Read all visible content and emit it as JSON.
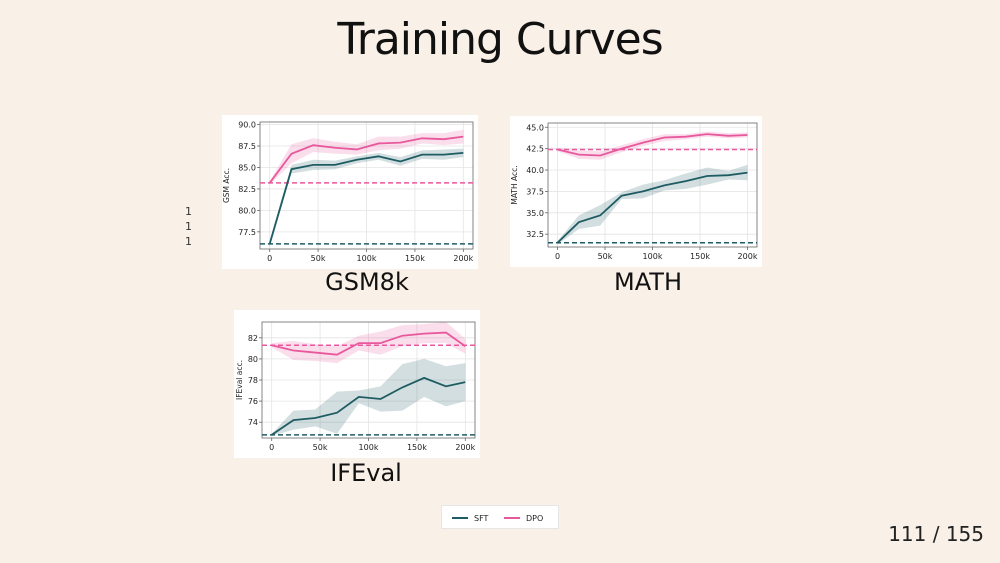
{
  "title": "Training Curves",
  "page_number": "111 / 155",
  "side_numbers": [
    "1",
    "1",
    "1"
  ],
  "legend": [
    {
      "name": "SFT",
      "color": "#1e5c63"
    },
    {
      "name": "DPO",
      "color": "#e8589c"
    }
  ],
  "colors": {
    "sft": "#1e5c63",
    "dpo": "#e8589c",
    "background": "#f9f0e7"
  },
  "chart_data": [
    {
      "id": "gsm8k",
      "type": "line",
      "caption": "GSM8k",
      "ylabel": "GSM Acc.",
      "xlim": [
        -10000,
        210000
      ],
      "ylim": [
        75.5,
        90.3
      ],
      "xticks": [
        0,
        50000,
        100000,
        150000,
        200000
      ],
      "xtick_labels": [
        "0",
        "50k",
        "100k",
        "150k",
        "200k"
      ],
      "yticks": [
        77.5,
        80.0,
        82.5,
        85.0,
        87.5,
        90.0
      ],
      "ytick_labels": [
        "77.5",
        "80.0",
        "82.5",
        "85.0",
        "87.5",
        "90.0"
      ],
      "grid": true,
      "x": [
        0,
        22500,
        45000,
        67500,
        90000,
        112500,
        135000,
        157500,
        180000,
        200000
      ],
      "series": [
        {
          "name": "SFT",
          "color": "#1e5c63",
          "values": [
            76.1,
            84.8,
            85.3,
            85.3,
            85.9,
            86.3,
            85.7,
            86.5,
            86.5,
            86.7
          ],
          "band": [
            0.4,
            0.5,
            0.6,
            0.5,
            0.4,
            0.4,
            0.5,
            0.5,
            0.6,
            0.5
          ],
          "baseline": 76.1
        },
        {
          "name": "DPO",
          "color": "#e8589c",
          "values": [
            83.2,
            86.6,
            87.6,
            87.3,
            87.1,
            87.8,
            87.9,
            88.4,
            88.3,
            88.6
          ],
          "band": [
            0.2,
            1.1,
            0.8,
            0.7,
            0.6,
            0.8,
            0.7,
            0.6,
            0.7,
            0.8
          ],
          "baseline": 83.2
        }
      ]
    },
    {
      "id": "math",
      "type": "line",
      "caption": "MATH",
      "ylabel": "MATH Acc.",
      "xlim": [
        -10000,
        210000
      ],
      "ylim": [
        31.0,
        45.5
      ],
      "xticks": [
        0,
        50000,
        100000,
        150000,
        200000
      ],
      "xtick_labels": [
        "0",
        "50k",
        "100k",
        "150k",
        "200k"
      ],
      "yticks": [
        32.5,
        35.0,
        37.5,
        40.0,
        42.5,
        45.0
      ],
      "ytick_labels": [
        "32.5",
        "35.0",
        "37.5",
        "40.0",
        "42.5",
        "45.0"
      ],
      "grid": true,
      "x": [
        0,
        22500,
        45000,
        67500,
        90000,
        112500,
        135000,
        157500,
        180000,
        200000
      ],
      "series": [
        {
          "name": "SFT",
          "color": "#1e5c63",
          "values": [
            31.5,
            33.9,
            34.7,
            37.0,
            37.5,
            38.2,
            38.7,
            39.3,
            39.4,
            39.7
          ],
          "band": [
            0.2,
            0.8,
            1.2,
            0.4,
            0.8,
            0.6,
            0.9,
            1.0,
            0.5,
            0.9
          ],
          "baseline": 31.5
        },
        {
          "name": "DPO",
          "color": "#e8589c",
          "values": [
            42.4,
            41.8,
            41.7,
            42.5,
            43.2,
            43.8,
            43.9,
            44.2,
            44.0,
            44.1
          ],
          "band": [
            0.2,
            0.5,
            0.5,
            0.4,
            0.4,
            0.4,
            0.3,
            0.3,
            0.3,
            0.3
          ],
          "baseline": 42.4
        }
      ]
    },
    {
      "id": "ifeval",
      "type": "line",
      "caption": "IFEval",
      "ylabel": "IFEval acc.",
      "xlim": [
        -10000,
        210000
      ],
      "ylim": [
        72.5,
        83.5
      ],
      "xticks": [
        0,
        50000,
        100000,
        150000,
        200000
      ],
      "xtick_labels": [
        "0",
        "50k",
        "100k",
        "150k",
        "200k"
      ],
      "yticks": [
        74,
        76,
        78,
        80,
        82
      ],
      "ytick_labels": [
        "74",
        "76",
        "78",
        "80",
        "82"
      ],
      "grid": true,
      "x": [
        0,
        22500,
        45000,
        67500,
        90000,
        112500,
        135000,
        157500,
        180000,
        200000
      ],
      "series": [
        {
          "name": "SFT",
          "color": "#1e5c63",
          "values": [
            72.8,
            74.2,
            74.4,
            74.9,
            76.4,
            76.2,
            77.3,
            78.2,
            77.4,
            77.8
          ],
          "band": [
            0.1,
            0.9,
            0.8,
            2.0,
            0.6,
            1.2,
            2.2,
            1.8,
            1.9,
            1.8
          ],
          "baseline": 72.8
        },
        {
          "name": "DPO",
          "color": "#e8589c",
          "values": [
            81.3,
            80.8,
            80.6,
            80.4,
            81.5,
            81.5,
            82.2,
            82.4,
            82.5,
            81.2
          ],
          "band": [
            0.2,
            0.9,
            0.8,
            0.8,
            0.7,
            1.1,
            1.0,
            0.9,
            1.0,
            0.7
          ],
          "baseline": 81.3
        }
      ]
    }
  ]
}
